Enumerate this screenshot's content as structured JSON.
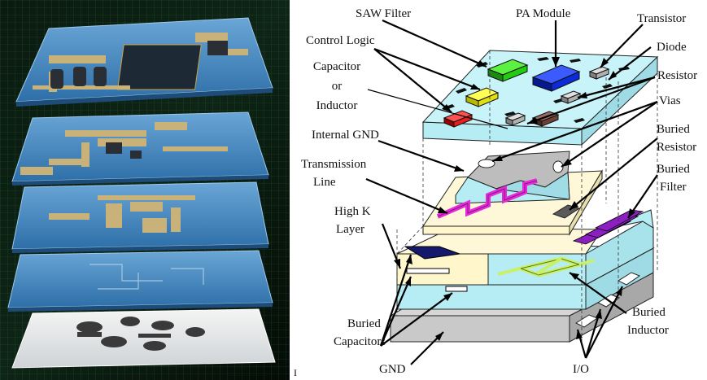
{
  "figure": {
    "labels": {
      "saw_filter": "SAW Filter",
      "pa_module": "PA Module",
      "transistor": "Transistor",
      "diode": "Diode",
      "control_logic": "Control Logic",
      "capacitor_or_inductor": [
        "Capacitor",
        "or",
        "Inductor"
      ],
      "resistor": "Resistor",
      "vias": "Vias",
      "internal_gnd": "Internal GND",
      "buried_resistor": [
        "Buried",
        "Resistor"
      ],
      "transmission_line": [
        "Transmission",
        "Line"
      ],
      "buried_filter": [
        "Buried",
        "Filter"
      ],
      "high_k_layer": [
        "High K",
        "Layer"
      ],
      "buried_capacitors": [
        "Buried",
        "Capacitors"
      ],
      "buried_inductor": [
        "Buried",
        "Inductor"
      ],
      "gnd": "GND",
      "io": "I/O",
      "separator_mark": "I"
    },
    "colors": {
      "substrate": "#b6ecf3",
      "internal_gnd": "#bdbdbd",
      "high_k": "#fff6cc",
      "saw_filter": "#22cc11",
      "pa_module": "#0a2bd6",
      "control_logic": "#f5f51a",
      "capacitor": "#e81d1d",
      "transmission_line": "#e52ad8",
      "buried_filter": "#8b1fc2",
      "buried_capacitor": "#14196b",
      "buried_inductor": "#c8f06a"
    }
  }
}
